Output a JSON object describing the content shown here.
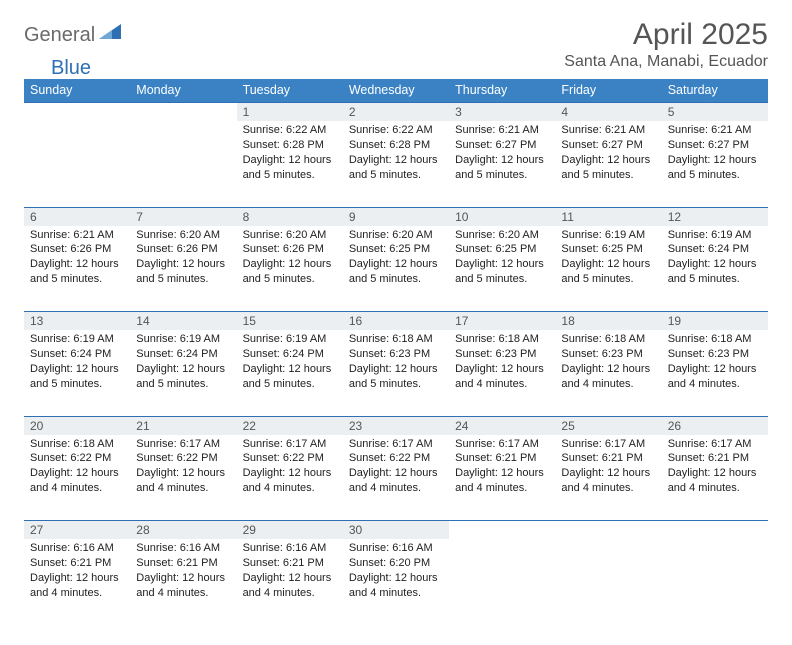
{
  "logo": {
    "word1": "General",
    "word2": "Blue",
    "accent_color": "#2f6fb3",
    "gray_color": "#6a6a6a"
  },
  "title": "April 2025",
  "location": "Santa Ana, Manabi, Ecuador",
  "colors": {
    "header_bg": "#3a82c4",
    "header_text": "#ffffff",
    "daynum_bg": "#eceff1",
    "rule": "#2f6fb3",
    "text": "#222222",
    "muted": "#555555",
    "page_bg": "#ffffff"
  },
  "weekdays": [
    "Sunday",
    "Monday",
    "Tuesday",
    "Wednesday",
    "Thursday",
    "Friday",
    "Saturday"
  ],
  "weeks": [
    [
      null,
      null,
      {
        "n": "1",
        "sr": "6:22 AM",
        "ss": "6:28 PM",
        "dl": "12 hours and 5 minutes."
      },
      {
        "n": "2",
        "sr": "6:22 AM",
        "ss": "6:28 PM",
        "dl": "12 hours and 5 minutes."
      },
      {
        "n": "3",
        "sr": "6:21 AM",
        "ss": "6:27 PM",
        "dl": "12 hours and 5 minutes."
      },
      {
        "n": "4",
        "sr": "6:21 AM",
        "ss": "6:27 PM",
        "dl": "12 hours and 5 minutes."
      },
      {
        "n": "5",
        "sr": "6:21 AM",
        "ss": "6:27 PM",
        "dl": "12 hours and 5 minutes."
      }
    ],
    [
      {
        "n": "6",
        "sr": "6:21 AM",
        "ss": "6:26 PM",
        "dl": "12 hours and 5 minutes."
      },
      {
        "n": "7",
        "sr": "6:20 AM",
        "ss": "6:26 PM",
        "dl": "12 hours and 5 minutes."
      },
      {
        "n": "8",
        "sr": "6:20 AM",
        "ss": "6:26 PM",
        "dl": "12 hours and 5 minutes."
      },
      {
        "n": "9",
        "sr": "6:20 AM",
        "ss": "6:25 PM",
        "dl": "12 hours and 5 minutes."
      },
      {
        "n": "10",
        "sr": "6:20 AM",
        "ss": "6:25 PM",
        "dl": "12 hours and 5 minutes."
      },
      {
        "n": "11",
        "sr": "6:19 AM",
        "ss": "6:25 PM",
        "dl": "12 hours and 5 minutes."
      },
      {
        "n": "12",
        "sr": "6:19 AM",
        "ss": "6:24 PM",
        "dl": "12 hours and 5 minutes."
      }
    ],
    [
      {
        "n": "13",
        "sr": "6:19 AM",
        "ss": "6:24 PM",
        "dl": "12 hours and 5 minutes."
      },
      {
        "n": "14",
        "sr": "6:19 AM",
        "ss": "6:24 PM",
        "dl": "12 hours and 5 minutes."
      },
      {
        "n": "15",
        "sr": "6:19 AM",
        "ss": "6:24 PM",
        "dl": "12 hours and 5 minutes."
      },
      {
        "n": "16",
        "sr": "6:18 AM",
        "ss": "6:23 PM",
        "dl": "12 hours and 5 minutes."
      },
      {
        "n": "17",
        "sr": "6:18 AM",
        "ss": "6:23 PM",
        "dl": "12 hours and 4 minutes."
      },
      {
        "n": "18",
        "sr": "6:18 AM",
        "ss": "6:23 PM",
        "dl": "12 hours and 4 minutes."
      },
      {
        "n": "19",
        "sr": "6:18 AM",
        "ss": "6:23 PM",
        "dl": "12 hours and 4 minutes."
      }
    ],
    [
      {
        "n": "20",
        "sr": "6:18 AM",
        "ss": "6:22 PM",
        "dl": "12 hours and 4 minutes."
      },
      {
        "n": "21",
        "sr": "6:17 AM",
        "ss": "6:22 PM",
        "dl": "12 hours and 4 minutes."
      },
      {
        "n": "22",
        "sr": "6:17 AM",
        "ss": "6:22 PM",
        "dl": "12 hours and 4 minutes."
      },
      {
        "n": "23",
        "sr": "6:17 AM",
        "ss": "6:22 PM",
        "dl": "12 hours and 4 minutes."
      },
      {
        "n": "24",
        "sr": "6:17 AM",
        "ss": "6:21 PM",
        "dl": "12 hours and 4 minutes."
      },
      {
        "n": "25",
        "sr": "6:17 AM",
        "ss": "6:21 PM",
        "dl": "12 hours and 4 minutes."
      },
      {
        "n": "26",
        "sr": "6:17 AM",
        "ss": "6:21 PM",
        "dl": "12 hours and 4 minutes."
      }
    ],
    [
      {
        "n": "27",
        "sr": "6:16 AM",
        "ss": "6:21 PM",
        "dl": "12 hours and 4 minutes."
      },
      {
        "n": "28",
        "sr": "6:16 AM",
        "ss": "6:21 PM",
        "dl": "12 hours and 4 minutes."
      },
      {
        "n": "29",
        "sr": "6:16 AM",
        "ss": "6:21 PM",
        "dl": "12 hours and 4 minutes."
      },
      {
        "n": "30",
        "sr": "6:16 AM",
        "ss": "6:20 PM",
        "dl": "12 hours and 4 minutes."
      },
      null,
      null,
      null
    ]
  ],
  "labels": {
    "sunrise": "Sunrise:",
    "sunset": "Sunset:",
    "daylight": "Daylight:"
  }
}
